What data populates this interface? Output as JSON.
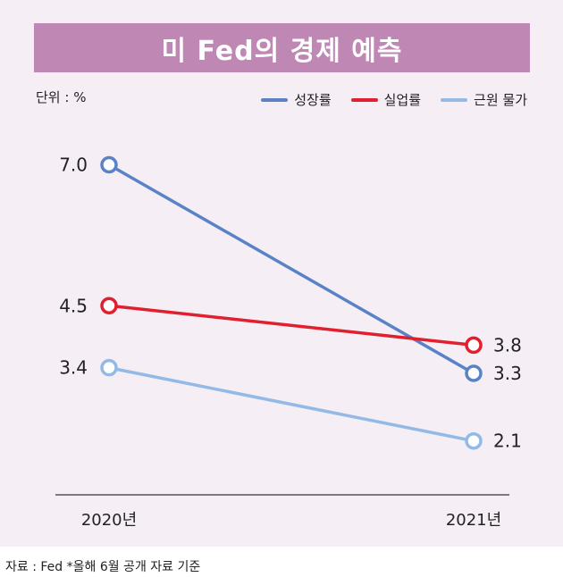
{
  "header": {
    "title": "미 Fed의 경제 예측"
  },
  "unit": "단위 : %",
  "source": "자료 : Fed *올해 6월 공개 자료 기준",
  "chart_data": {
    "type": "line",
    "title": "미 Fed의 경제 예측",
    "categories": [
      "2020년",
      "2021년"
    ],
    "series": [
      {
        "name": "성장률",
        "values": [
          7.0,
          3.3
        ],
        "labels": [
          "7.0",
          "3.3"
        ],
        "color": "#5a83c7"
      },
      {
        "name": "실업률",
        "values": [
          4.5,
          3.8
        ],
        "labels": [
          "4.5",
          "3.8"
        ],
        "color": "#e0202e"
      },
      {
        "name": "근원 물가",
        "values": [
          3.4,
          2.1
        ],
        "labels": [
          "3.4",
          "2.1"
        ],
        "color": "#93b9e6"
      }
    ],
    "grid": false,
    "legend": "top-right"
  }
}
